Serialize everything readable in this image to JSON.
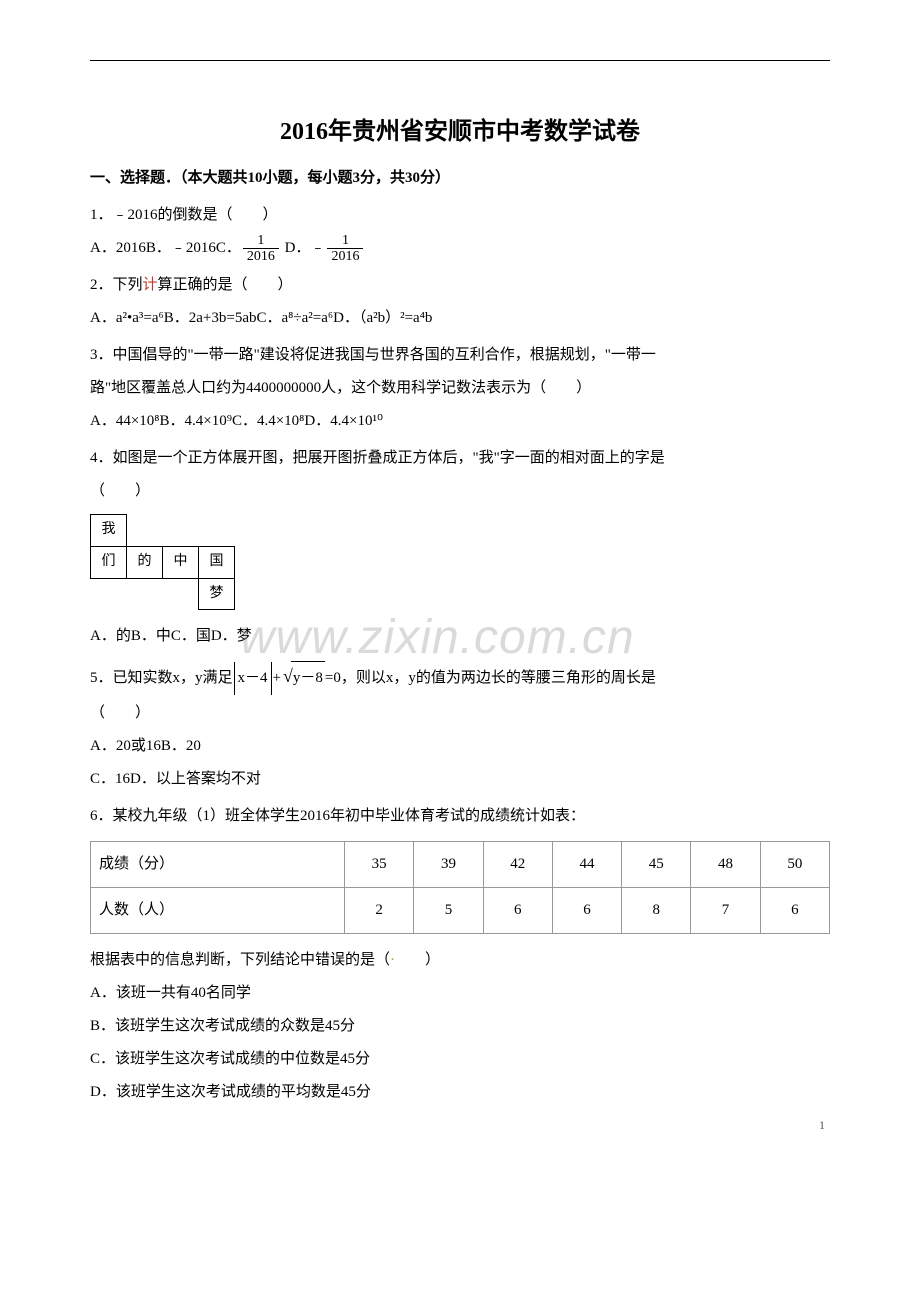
{
  "title": "2016年贵州省安顺市中考数学试卷",
  "section_header": "一、选择题．（本大题共10小题，每小题3分，共30分）",
  "q1": {
    "stem": "1．﹣2016的倒数是（　　）",
    "opts_prefix": "A．2016B．﹣2016C．",
    "frac1_num": "1",
    "frac1_den": "2016",
    "opts_mid": " D．﹣",
    "frac2_num": "1",
    "frac2_den": "2016"
  },
  "q2": {
    "stem": "2．下列",
    "stem_red": "计",
    "stem_after": "算正确的是（　　）",
    "opts": "A．a²•a³=a⁶B．2a+3b=5abC．a⁸÷a²=a⁶D．（a²b）²=a⁴b"
  },
  "q3": {
    "line1": "3．中国倡导的\"一带一路\"建设将促进我国与世界各国的互利合作，根据规划，\"一带一",
    "line2": "路\"地区覆盖总人口约为4400000000人，这个数用科学记数法表示为（　　）",
    "opts": "A．44×10⁸B．4.4×10⁹C．4.4×10⁸D．4.4×10¹⁰"
  },
  "q4": {
    "line1": "4．如图是一个正方体展开图，把展开图折叠成正方体后，\"我\"字一面的相对面上的字是",
    "line2": "（　　）",
    "net": {
      "c1": "我",
      "c2": "们",
      "c3": "的",
      "c4": "中",
      "c5": "国",
      "c6": "梦"
    },
    "opts": "A．的B．中C．国D．梦"
  },
  "q5": {
    "prefix": "5．已知实数x，y满足",
    "abs_expr": "x－4",
    "plus": "+",
    "sqrt_arg": "y－8",
    "suffix": "=0，则以x，y的值为两边长的等腰三角形的周长是",
    "line2": "（　　）",
    "optsA": "A．20或16B．20",
    "optsB": "C．16D．以上答案均不对"
  },
  "q6": {
    "stem": "6．某校九年级（1）班全体学生2016年初中毕业体育考试的成绩统计如表：",
    "table": {
      "row1_label": "成绩（分）",
      "row1": [
        "35",
        "39",
        "42",
        "44",
        "45",
        "48",
        "50"
      ],
      "row2_label": "人数（人）",
      "row2": [
        "2",
        "5",
        "6",
        "6",
        "8",
        "7",
        "6"
      ]
    },
    "after_pre": "根据表中的信息判断，下列结论中错误的是（",
    "after_post": "　　）",
    "optA": "A．该班一共有40名同学",
    "optB": "B．该班学生这次考试成绩的众数是45分",
    "optC": "C．该班学生这次考试成绩的中位数是45分",
    "optD": "D．该班学生这次考试成绩的平均数是45分"
  },
  "watermark": "www.zixin.com.cn",
  "page_number": "1"
}
